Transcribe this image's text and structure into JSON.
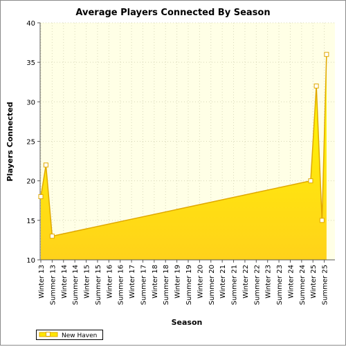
{
  "chart_data": {
    "type": "area",
    "title": "Average Players Connected By Season",
    "xlabel": "Season",
    "ylabel": "Players Connected",
    "ylim": [
      10,
      40
    ],
    "yticks": [
      10,
      15,
      20,
      25,
      30,
      35,
      40
    ],
    "categories": [
      "Winter 13",
      "Summer 13",
      "Winter 14",
      "Summer 14",
      "Winter 15",
      "Summer 15",
      "Winter 16",
      "Summer 16",
      "Winter 17",
      "Summer 17",
      "Winter 18",
      "Summer 18",
      "Winter 19",
      "Summer 19",
      "Winter 20",
      "Summer 20",
      "Winter 21",
      "Summer 21",
      "Winter 22",
      "Summer 22",
      "Winter 23",
      "Summer 23",
      "Winter 24",
      "Summer 24",
      "Winter 25",
      "Summer 25"
    ],
    "series": [
      {
        "name": "New Haven",
        "points": [
          {
            "x": 0.0,
            "y": 18
          },
          {
            "x": 0.45,
            "y": 22
          },
          {
            "x": 1.0,
            "y": 13
          },
          {
            "x": 23.8,
            "y": 20
          },
          {
            "x": 24.3,
            "y": 32
          },
          {
            "x": 24.8,
            "y": 15
          },
          {
            "x": 25.2,
            "y": 36
          }
        ]
      }
    ],
    "grid": true,
    "legend": "bottom-left",
    "colors": {
      "fill_top": "#ffff00",
      "fill_bottom": "#ffd21a",
      "line": "#e0a800",
      "plot_background": "#ffffe6",
      "grid": "#d8d8b8"
    }
  }
}
